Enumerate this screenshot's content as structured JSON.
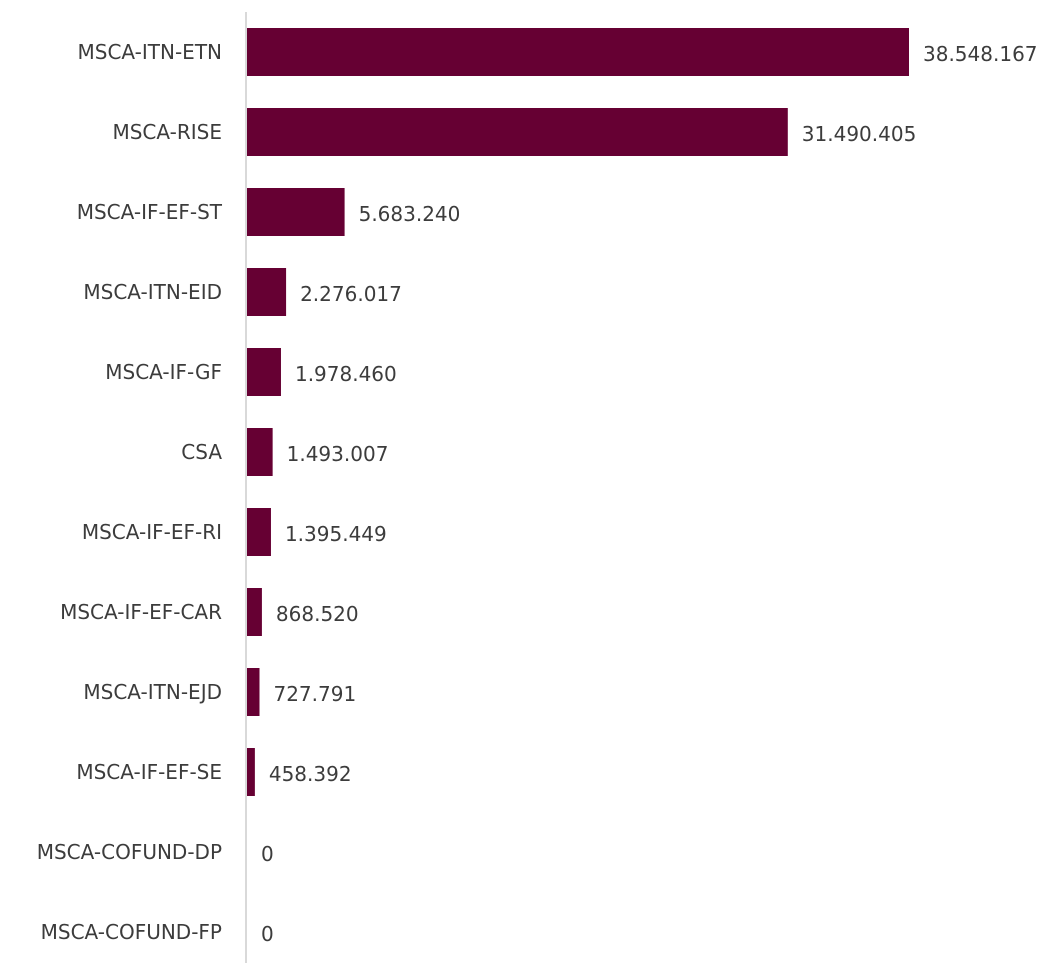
{
  "chart_data": {
    "type": "bar",
    "orientation": "horizontal",
    "categories": [
      "MSCA-ITN-ETN",
      "MSCA-RISE",
      "MSCA-IF-EF-ST",
      "MSCA-ITN-EID",
      "MSCA-IF-GF",
      "CSA",
      "MSCA-IF-EF-RI",
      "MSCA-IF-EF-CAR",
      "MSCA-ITN-EJD",
      "MSCA-IF-EF-SE",
      "MSCA-COFUND-DP",
      "MSCA-COFUND-FP"
    ],
    "values": [
      38548167,
      31490405,
      5683240,
      2276017,
      1978460,
      1493007,
      1395449,
      868520,
      727791,
      458392,
      0,
      0
    ],
    "value_labels": [
      "38.548.167",
      "31.490.405",
      "5.683.240",
      "2.276.017",
      "1.978.460",
      "1.493.007",
      "1.395.449",
      "868.520",
      "727.791",
      "458.392",
      "0",
      "0"
    ],
    "title": "",
    "xlabel": "",
    "ylabel": "",
    "xlim": [
      0,
      38548167
    ],
    "grid": false,
    "legend": "none",
    "bar_color": "#660033",
    "axis_color": "#d9d9d9",
    "text_color": "#3c3c3c"
  }
}
